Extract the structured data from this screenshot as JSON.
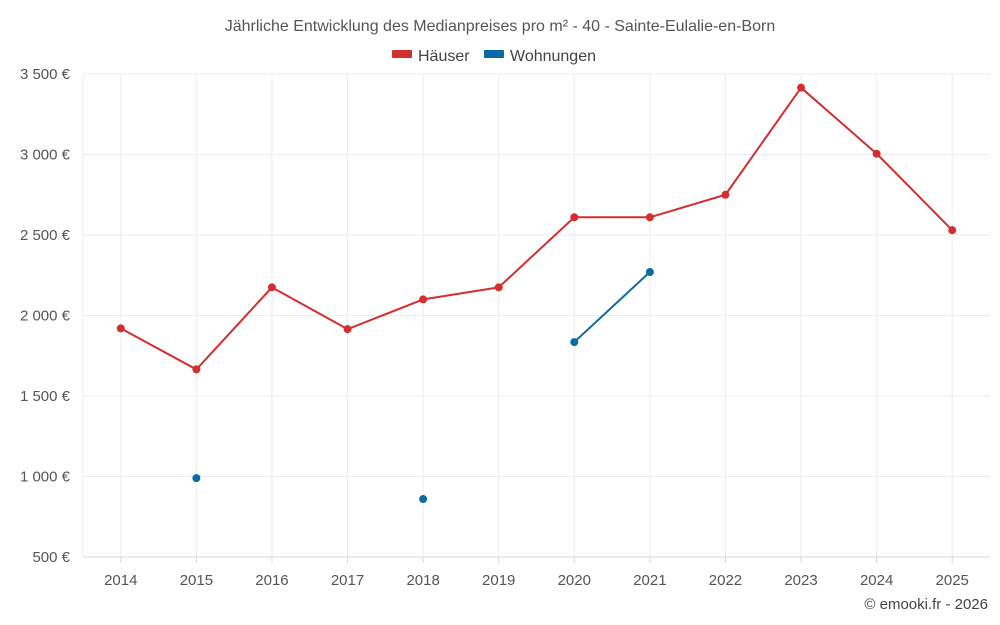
{
  "chart_data": {
    "type": "line",
    "title": "Jährliche Entwicklung des Medianpreises pro m² - 40 - Sainte-Eulalie-en-Born",
    "x": [
      2014,
      2015,
      2016,
      2017,
      2018,
      2019,
      2020,
      2021,
      2022,
      2023,
      2024,
      2025
    ],
    "ylim": [
      500,
      3500
    ],
    "yticks": [
      500,
      1000,
      1500,
      2000,
      2500,
      3000,
      3500
    ],
    "ytick_labels": [
      "500 €",
      "1 000 €",
      "1 500 €",
      "2 000 €",
      "2 500 €",
      "3 000 €",
      "3 500 €"
    ],
    "xtick_labels": [
      "2014",
      "2015",
      "2016",
      "2017",
      "2018",
      "2019",
      "2020",
      "2021",
      "2022",
      "2023",
      "2024",
      "2025"
    ],
    "legend_position": "top-center",
    "grid": true,
    "series": [
      {
        "name": "Häuser",
        "color": "#d32f2f",
        "values": [
          1920,
          1665,
          2175,
          1915,
          2100,
          2175,
          2610,
          2610,
          2750,
          3415,
          3005,
          2530
        ]
      },
      {
        "name": "Wohnungen",
        "color": "#0b6aa3",
        "values": [
          null,
          990,
          null,
          null,
          860,
          null,
          1835,
          2270,
          null,
          null,
          null,
          null
        ]
      }
    ]
  },
  "credit": "© emooki.fr - 2026"
}
